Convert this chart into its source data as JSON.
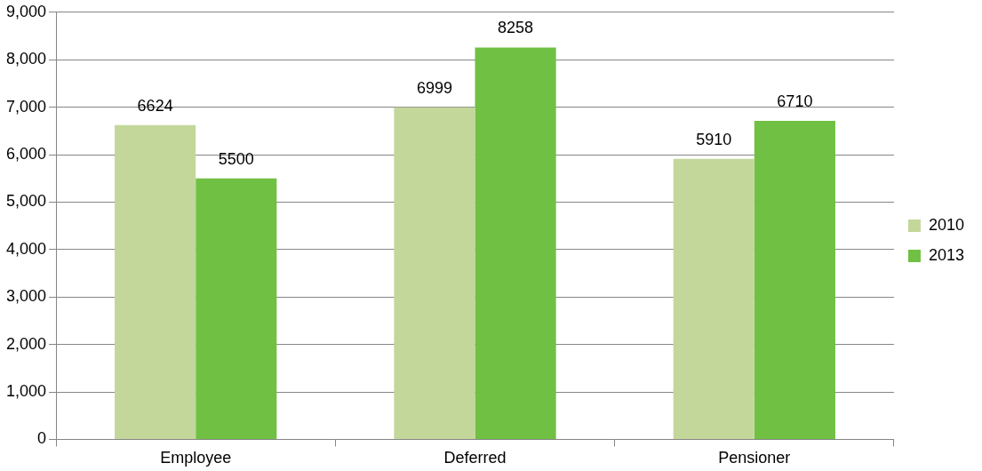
{
  "chart_data": {
    "type": "bar",
    "categories": [
      "Employee",
      "Deferred",
      "Pensioner"
    ],
    "series": [
      {
        "name": "2010",
        "color": "#c4d79b",
        "values": [
          6624,
          6999,
          5910
        ]
      },
      {
        "name": "2013",
        "color": "#70c044",
        "values": [
          5500,
          8258,
          6710
        ]
      }
    ],
    "ylim": [
      0,
      9000
    ],
    "yticks": [
      0,
      {
        "value": 1000,
        "label": "1,000"
      },
      {
        "value": 2000,
        "label": "2,000"
      },
      {
        "value": 3000,
        "label": "3,000"
      },
      {
        "value": 4000,
        "label": "4,000"
      },
      {
        "value": 5000,
        "label": "5,000"
      },
      {
        "value": 6000,
        "label": "6,000"
      },
      {
        "value": 7000,
        "label": "7,000"
      },
      {
        "value": 8000,
        "label": "8,000"
      },
      {
        "value": 9000,
        "label": "9,000"
      }
    ],
    "grid": "y",
    "legend": "right",
    "data_labels": true
  }
}
